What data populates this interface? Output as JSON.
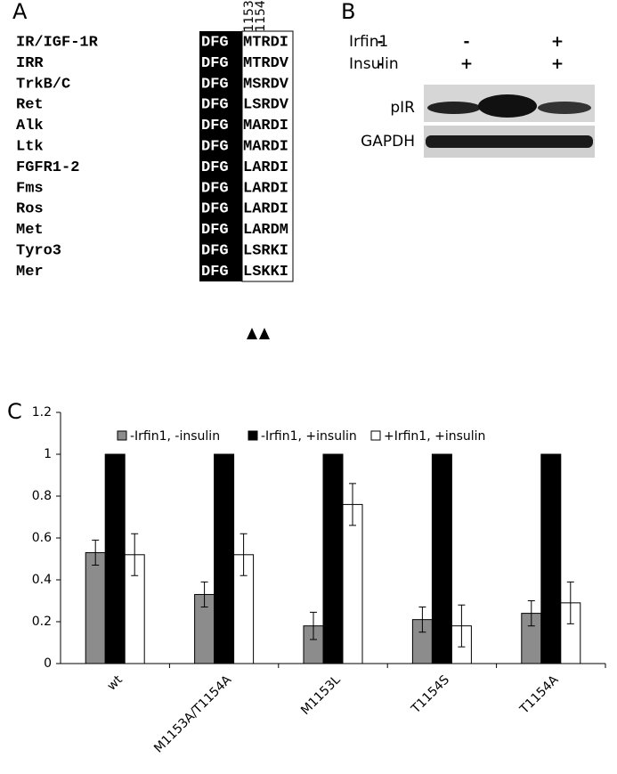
{
  "panel_a": {
    "label": "A",
    "positions": [
      1153,
      1154
    ],
    "rows": [
      {
        "name": "IR/IGF-1R",
        "motif": "DFG",
        "residues": "MTRDI"
      },
      {
        "name": "IRR",
        "motif": "DFG",
        "residues": "MTRDV"
      },
      {
        "name": "TrkB/C",
        "motif": "DFG",
        "residues": "MSRDV"
      },
      {
        "name": "Ret",
        "motif": "DFG",
        "residues": "LSRDV"
      },
      {
        "name": "Alk",
        "motif": "DFG",
        "residues": "MARDI"
      },
      {
        "name": "Ltk",
        "motif": "DFG",
        "residues": "MARDI"
      },
      {
        "name": "FGFR1-2",
        "motif": "DFG",
        "residues": "LARDI"
      },
      {
        "name": "Fms",
        "motif": "DFG",
        "residues": "LARDI"
      },
      {
        "name": "Ros",
        "motif": "DFG",
        "residues": "LARDI"
      },
      {
        "name": "Met",
        "motif": "DFG",
        "residues": "LARDM"
      },
      {
        "name": "Tyro3",
        "motif": "DFG",
        "residues": "LSRKI"
      },
      {
        "name": "Mer",
        "motif": "DFG",
        "residues": "LSKKI"
      }
    ]
  },
  "panel_b": {
    "label": "B",
    "conditions": [
      {
        "name": "Irfin1",
        "signs": [
          "-",
          "-",
          "+"
        ]
      },
      {
        "name": "Insulin",
        "signs": [
          "-",
          "+",
          "+"
        ]
      }
    ],
    "blots": [
      "pIR",
      "GAPDH"
    ]
  },
  "chart_data": {
    "type": "bar",
    "label": "C",
    "categories": [
      "wt",
      "M1153A/T1154A",
      "M1153L",
      "T1154S",
      "T1154A"
    ],
    "series": [
      {
        "name": "-Irfin1, -insulin",
        "color": "#8c8c8c",
        "values": [
          0.53,
          0.33,
          0.18,
          0.21,
          0.24
        ],
        "errors": [
          0.06,
          0.06,
          0.065,
          0.06,
          0.06
        ]
      },
      {
        "name": "-Irfin1, +insulin",
        "color": "#000000",
        "values": [
          1,
          1,
          1,
          1,
          1
        ],
        "errors": [
          0,
          0,
          0,
          0,
          0
        ]
      },
      {
        "name": "+Irfin1, +insulin",
        "color": "#ffffff",
        "values": [
          0.52,
          0.52,
          0.76,
          0.18,
          0.29
        ],
        "errors": [
          0.1,
          0.1,
          0.1,
          0.1,
          0.1
        ]
      }
    ],
    "ylim": [
      0,
      1.2
    ],
    "yticks": [
      0,
      0.2,
      0.4,
      0.6,
      0.8,
      1,
      1.2
    ]
  }
}
